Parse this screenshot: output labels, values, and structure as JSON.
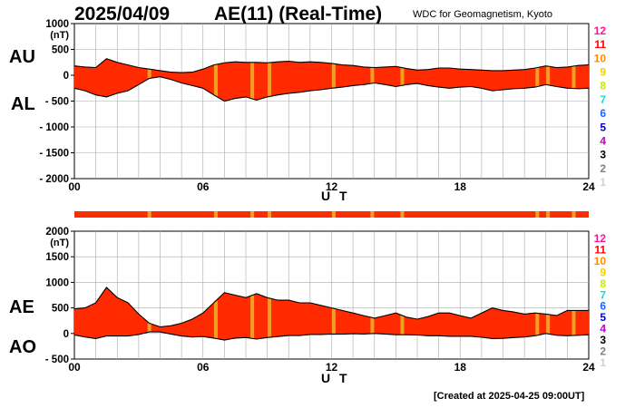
{
  "header": {
    "date": "2025/04/09",
    "title": "AE(11) (Real-Time)",
    "source": "WDC for Geomagnetism, Kyoto"
  },
  "footer": {
    "created": "[Created at 2025-04-25 09:00UT]"
  },
  "legend_scale": {
    "values": [
      "12",
      "11",
      "10",
      "9",
      "8",
      "7",
      "6",
      "5",
      "4",
      "3",
      "2",
      "1"
    ],
    "colors": [
      "#ff1493",
      "#ff0000",
      "#ff8c00",
      "#f0d000",
      "#c8e800",
      "#20d8d8",
      "#2060ff",
      "#0000cc",
      "#c000c0",
      "#000000",
      "#808080",
      "#d0d0d0"
    ]
  },
  "colors": {
    "fill": "#ff2a00",
    "highlight": "#f0a020",
    "line": "#000000",
    "grid": "#aaaaaa"
  },
  "chart_data": [
    {
      "type": "area",
      "panel": "AU/AL",
      "series_labels": [
        "AU",
        "AL"
      ],
      "xlabel": "U T",
      "ylabel_unit": "(nT)",
      "x_ticks": [
        "00",
        "06",
        "12",
        "18",
        "24"
      ],
      "y_ticks": [
        "1000",
        "500",
        "0",
        "- 500",
        "- 1000",
        "- 1500",
        "- 2000"
      ],
      "xlim": [
        0,
        24
      ],
      "ylim": [
        -2000,
        1000
      ],
      "hours": [
        0,
        0.5,
        1,
        1.5,
        2,
        2.5,
        3,
        3.5,
        4,
        4.5,
        5,
        5.5,
        6,
        6.5,
        7,
        7.5,
        8,
        8.5,
        9,
        9.5,
        10,
        10.5,
        11,
        11.5,
        12,
        12.5,
        13,
        13.5,
        14,
        14.5,
        15,
        15.5,
        16,
        16.5,
        17,
        17.5,
        18,
        18.5,
        19,
        19.5,
        20,
        20.5,
        21,
        21.5,
        22,
        22.5,
        23,
        23.5,
        24
      ],
      "series": [
        {
          "name": "AU",
          "values": [
            180,
            160,
            150,
            320,
            250,
            200,
            150,
            120,
            90,
            60,
            50,
            60,
            120,
            200,
            240,
            260,
            250,
            250,
            240,
            260,
            270,
            250,
            260,
            250,
            230,
            200,
            190,
            160,
            150,
            160,
            170,
            130,
            100,
            110,
            140,
            140,
            120,
            110,
            100,
            90,
            90,
            100,
            110,
            140,
            180,
            150,
            160,
            190,
            200
          ]
        },
        {
          "name": "AL",
          "values": [
            -250,
            -300,
            -380,
            -420,
            -350,
            -300,
            -180,
            -60,
            -30,
            -80,
            -150,
            -200,
            -250,
            -380,
            -500,
            -450,
            -420,
            -480,
            -420,
            -380,
            -350,
            -330,
            -300,
            -280,
            -250,
            -230,
            -200,
            -180,
            -150,
            -180,
            -220,
            -180,
            -160,
            -200,
            -230,
            -250,
            -230,
            -220,
            -250,
            -300,
            -280,
            -260,
            -250,
            -230,
            -180,
            -220,
            -250,
            -260,
            -250
          ]
        }
      ],
      "highlight_hours": [
        3.5,
        6.6,
        8.3,
        9.1,
        12.1,
        13.9,
        15.3,
        21.6,
        22.1,
        23.3
      ]
    },
    {
      "type": "area",
      "panel": "AE/AO",
      "series_labels": [
        "AE",
        "AO"
      ],
      "xlabel": "U T",
      "ylabel_unit": "(nT)",
      "x_ticks": [
        "00",
        "06",
        "12",
        "18",
        "24"
      ],
      "y_ticks": [
        "2000",
        "1500",
        "1000",
        "500",
        "0",
        "- 500"
      ],
      "xlim": [
        0,
        24
      ],
      "ylim": [
        -500,
        2000
      ],
      "hours": [
        0,
        0.5,
        1,
        1.5,
        2,
        2.5,
        3,
        3.5,
        4,
        4.5,
        5,
        5.5,
        6,
        6.5,
        7,
        7.5,
        8,
        8.5,
        9,
        9.5,
        10,
        10.5,
        11,
        11.5,
        12,
        12.5,
        13,
        13.5,
        14,
        14.5,
        15,
        15.5,
        16,
        16.5,
        17,
        17.5,
        18,
        18.5,
        19,
        19.5,
        20,
        20.5,
        21,
        21.5,
        22,
        22.5,
        23,
        23.5,
        24
      ],
      "series": [
        {
          "name": "AE",
          "values": [
            480,
            500,
            600,
            900,
            700,
            600,
            380,
            200,
            130,
            150,
            200,
            280,
            400,
            600,
            800,
            750,
            700,
            780,
            700,
            650,
            650,
            600,
            600,
            550,
            500,
            450,
            400,
            350,
            300,
            350,
            400,
            320,
            280,
            330,
            400,
            400,
            350,
            300,
            400,
            500,
            450,
            420,
            380,
            400,
            380,
            350,
            450,
            450,
            450
          ]
        },
        {
          "name": "AO",
          "values": [
            -30,
            -70,
            -100,
            -50,
            -50,
            -50,
            -20,
            30,
            30,
            -10,
            -50,
            -70,
            -60,
            -90,
            -130,
            -90,
            -80,
            -110,
            -80,
            -60,
            -40,
            -40,
            -20,
            -20,
            -10,
            -15,
            -5,
            -10,
            0,
            -10,
            -25,
            -25,
            -30,
            -45,
            -45,
            -55,
            -55,
            -55,
            -75,
            -100,
            -95,
            -80,
            -70,
            -45,
            0,
            -35,
            -45,
            -35,
            -25
          ]
        }
      ],
      "highlight_hours": [
        3.5,
        6.6,
        8.3,
        9.1,
        12.1,
        13.9,
        15.3,
        21.6,
        22.1,
        23.3
      ]
    }
  ]
}
